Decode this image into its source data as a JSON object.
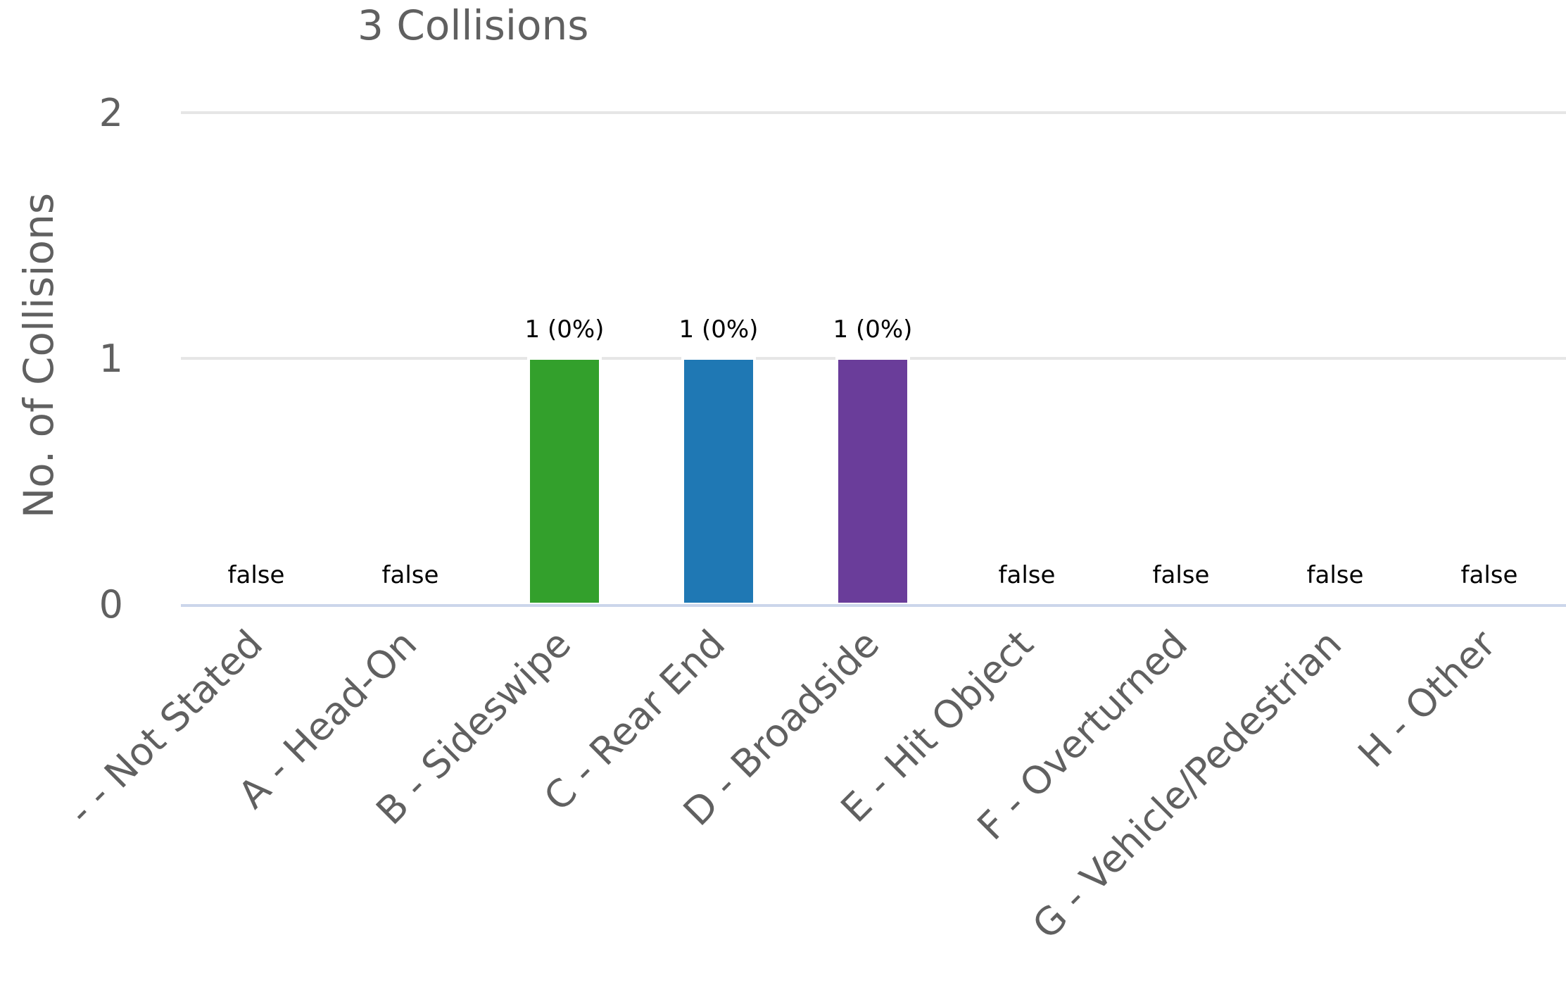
{
  "chart_data": {
    "type": "bar",
    "title": "3 Collisions",
    "ylabel": "No. of Collisions",
    "xlabel": "",
    "ylim": [
      0,
      2
    ],
    "yticks": [
      0,
      1,
      2
    ],
    "grid": true,
    "categories": [
      "- - Not Stated",
      "A - Head-On",
      "B - Sideswipe",
      "C - Rear End",
      "D - Broadside",
      "E - Hit Object",
      "F - Overturned",
      "G - Vehicle/Pedestrian",
      "H - Other"
    ],
    "values": [
      0,
      0,
      1,
      1,
      1,
      0,
      0,
      0,
      0
    ],
    "data_labels": [
      "false",
      "false",
      "1 (0%)",
      "1 (0%)",
      "1 (0%)",
      "false",
      "false",
      "false",
      "false"
    ],
    "colors": [
      "#33a02c",
      "#33a02c",
      "#33a02c",
      "#1f78b4",
      "#6a3d9a",
      "#33a02c",
      "#33a02c",
      "#33a02c",
      "#33a02c"
    ]
  }
}
